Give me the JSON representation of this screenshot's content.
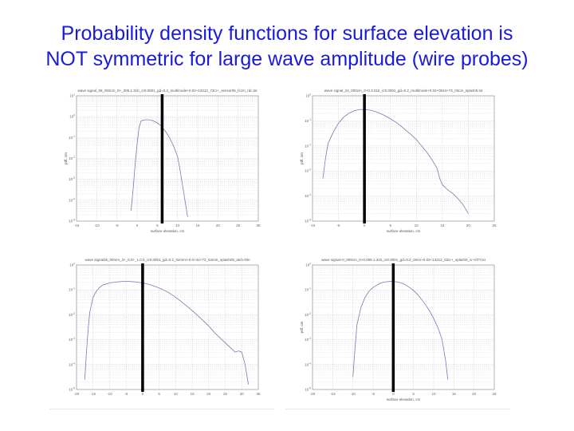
{
  "slide": {
    "title_line1": "Probability density functions for surface elevation is",
    "title_line2": "NOT symmetric for large wave amplitude (wire probes)"
  },
  "colors": {
    "title": "#1a1adb",
    "curve": "#6f7fb4",
    "marker": "#000000",
    "grid": "#c8c8c8"
  },
  "chart_data": [
    {
      "type": "line",
      "title": "wave signal_08_003cm_0+_306.1.31b_cr0.0001_gd=0.2_multimode+0.02+13212_73cr+_sensor06_fccm_rdc.txt",
      "xlabel": "surface elevation, cm",
      "ylabel": "pdf, cm",
      "xlim": [
        -15,
        30
      ],
      "xticks": [
        -15,
        -10,
        -5,
        0,
        5,
        10,
        15,
        20,
        25,
        30
      ],
      "ylog": true,
      "ylim_exp": [
        -5,
        1
      ],
      "ytick_exp": [
        -5,
        -4,
        -3,
        -2,
        -1,
        0,
        1
      ],
      "marker_x": 6.2,
      "series": [
        {
          "x": [
            -1.5,
            -1.0,
            -0.5,
            0.0,
            0.5,
            1.0,
            2.0,
            3.0,
            4.0,
            5.0,
            6.0,
            7.0,
            8.0,
            9.0,
            10.0,
            10.5,
            11.0,
            11.5,
            12.0,
            12.5
          ],
          "y": [
            -4.5,
            -3.5,
            -2.3,
            -1.3,
            -0.5,
            -0.2,
            -0.15,
            -0.15,
            -0.2,
            -0.3,
            -0.45,
            -0.7,
            -1.0,
            -1.4,
            -1.9,
            -2.4,
            -3.0,
            -3.6,
            -4.2,
            -4.8
          ]
        }
      ]
    },
    {
      "type": "line",
      "title": "wave signal_24_000cm_0+0.3:21b_cr0.0001_gd=0.2_multimode+0.02+0044+73_03cm_splash0.txt",
      "xlabel": "surface elevation, cm",
      "ylabel": "pdf, cm",
      "xlim": [
        -10,
        25
      ],
      "xticks": [
        -10,
        -5,
        0,
        5,
        10,
        15,
        20,
        25
      ],
      "ylog": true,
      "ylim_exp": [
        -5,
        0
      ],
      "ytick_exp": [
        -5,
        -4,
        -3,
        -2,
        -1,
        0
      ],
      "marker_x": 0,
      "series": [
        {
          "x": [
            -8,
            -7.5,
            -7,
            -6,
            -5,
            -4,
            -3,
            -2,
            -1,
            0,
            1,
            2,
            3,
            4,
            5,
            6,
            7,
            8,
            9,
            10,
            11,
            12,
            13,
            14,
            14.5,
            15,
            16,
            17,
            18,
            19,
            20
          ],
          "y": [
            -3.3,
            -2.5,
            -1.9,
            -1.45,
            -1.1,
            -0.85,
            -0.7,
            -0.6,
            -0.55,
            -0.55,
            -0.57,
            -0.62,
            -0.7,
            -0.8,
            -0.92,
            -1.05,
            -1.2,
            -1.38,
            -1.55,
            -1.75,
            -2.0,
            -2.25,
            -2.55,
            -2.9,
            -3.3,
            -3.55,
            -3.75,
            -3.9,
            -4.1,
            -4.35,
            -4.7
          ]
        }
      ]
    },
    {
      "type": "line",
      "title": "wave signal26_00mm_3+_0.0+_1.0 b_cr0.0001_gd=0.2_0xmmr+0.0+44+73_04mm_splash05_atch+bln",
      "xlabel": "",
      "ylabel": "",
      "xlim": [
        -20,
        35
      ],
      "xticks": [
        -20,
        -15,
        -10,
        -5,
        0,
        5,
        10,
        15,
        20,
        25,
        30,
        35
      ],
      "ylog": true,
      "ylim_exp": [
        -5,
        0
      ],
      "ytick_exp": [
        -5,
        -4,
        -3,
        -2,
        -1,
        0
      ],
      "marker_x": 0,
      "series": [
        {
          "x": [
            -17.5,
            -17,
            -16.5,
            -16,
            -15,
            -14,
            -13,
            -12,
            -10,
            -8,
            -6,
            -4,
            -2,
            0,
            2,
            4,
            6,
            8,
            10,
            12,
            14,
            16,
            18,
            20,
            22,
            24,
            26,
            28,
            29,
            30,
            31,
            32
          ],
          "y": [
            -4.6,
            -3.5,
            -2.6,
            -1.9,
            -1.3,
            -1.05,
            -0.9,
            -0.8,
            -0.72,
            -0.68,
            -0.66,
            -0.66,
            -0.68,
            -0.72,
            -0.78,
            -0.87,
            -0.98,
            -1.12,
            -1.3,
            -1.5,
            -1.72,
            -1.95,
            -2.2,
            -2.45,
            -2.75,
            -3.0,
            -3.25,
            -3.5,
            -3.45,
            -3.5,
            -4.0,
            -4.8
          ]
        }
      ]
    },
    {
      "type": "line",
      "title": "wave signal+0_009cm_0+0.005.1.31b_cr0.0001_gd=0.2_0mm+0.02+13212_03cr+_splash0_cr+0TT.txt",
      "xlabel": "surface elevation, cm",
      "ylabel": "pdf, cm",
      "xlim": [
        -20,
        25
      ],
      "xticks": [
        -20,
        -15,
        -10,
        -5,
        0,
        5,
        10,
        15,
        20,
        25
      ],
      "ylog": true,
      "ylim_exp": [
        -5,
        0
      ],
      "ytick_exp": [
        -5,
        -4,
        -3,
        -2,
        -1,
        0
      ],
      "marker_x": 0,
      "series": [
        {
          "x": [
            -10,
            -9.5,
            -9,
            -8,
            -7,
            -6,
            -5,
            -4,
            -3,
            -2,
            -1,
            0,
            1,
            2,
            3,
            4,
            5,
            6,
            7,
            8,
            9,
            10,
            11,
            12,
            12.5,
            13,
            13.5
          ],
          "y": [
            -4.5,
            -3.4,
            -2.4,
            -1.7,
            -1.3,
            -1.05,
            -0.9,
            -0.8,
            -0.72,
            -0.68,
            -0.66,
            -0.66,
            -0.68,
            -0.72,
            -0.8,
            -0.9,
            -1.02,
            -1.18,
            -1.38,
            -1.6,
            -1.85,
            -2.15,
            -2.5,
            -2.95,
            -3.4,
            -3.9,
            -4.6
          ]
        }
      ]
    }
  ]
}
